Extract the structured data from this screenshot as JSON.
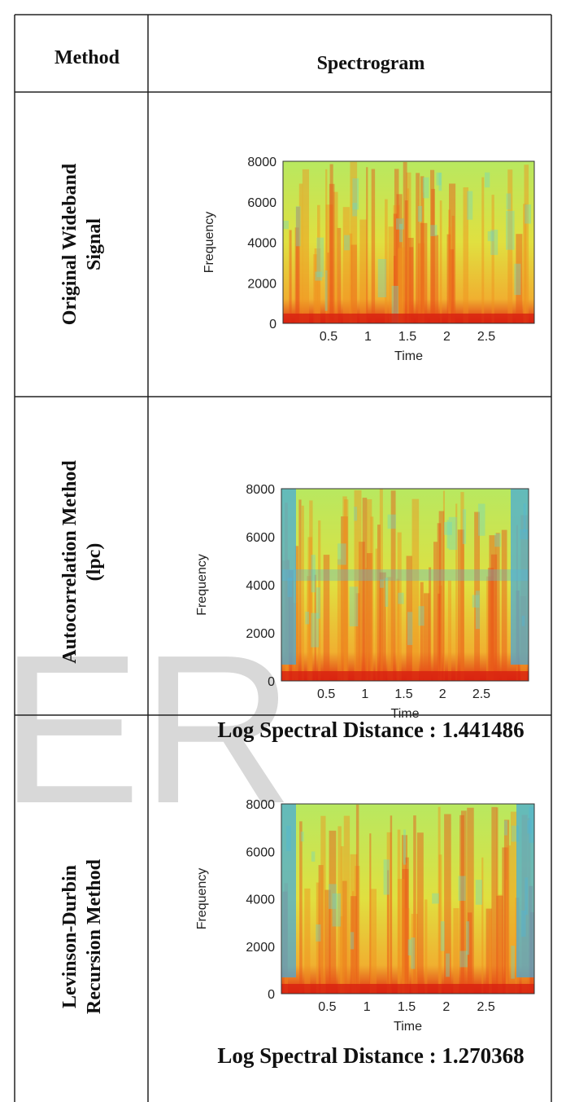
{
  "table": {
    "header": {
      "method": "Method",
      "spectrogram": "Spectrogram"
    },
    "rows": [
      {
        "method": [
          "Original Wideband",
          "Signal"
        ],
        "plot": {
          "ylabel": "Frequency",
          "xlabel": "Time",
          "yticks": [
            "8000",
            "6000",
            "4000",
            "2000",
            "0"
          ],
          "xticks": [
            "0.5",
            "1",
            "1.5",
            "2",
            "2.5"
          ]
        }
      },
      {
        "method": [
          "Autocorrelation Method",
          "(lpc)"
        ],
        "plot": {
          "ylabel": "Frequency",
          "xlabel": "Time",
          "yticks": [
            "8000",
            "6000",
            "4000",
            "2000",
            "0"
          ],
          "xticks": [
            "0.5",
            "1",
            "1.5",
            "2",
            "2.5"
          ]
        },
        "caption": "Log Spectral Distance : 1.441486"
      },
      {
        "method": [
          "Levinson-Durbin",
          "Recursion Method"
        ],
        "plot": {
          "ylabel": "Frequency",
          "xlabel": "Time",
          "yticks": [
            "8000",
            "6000",
            "4000",
            "2000",
            "0"
          ],
          "xticks": [
            "0.5",
            "1",
            "1.5",
            "2",
            "2.5"
          ]
        },
        "caption": "Log Spectral Distance : 1.270368"
      }
    ]
  },
  "watermark": "ER"
}
